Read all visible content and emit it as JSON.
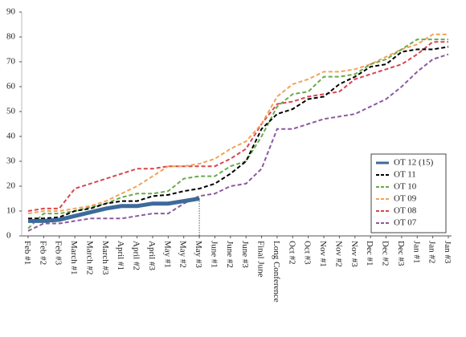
{
  "chart_data": {
    "type": "line",
    "categories": [
      "Feb #1",
      "Feb #2",
      "Feb #3",
      "March #1",
      "March #2",
      "March #3",
      "April #1",
      "April #2",
      "April #3",
      "May #1",
      "May #2",
      "May #3",
      "June #1",
      "June #2",
      "June #3",
      "Final June",
      "Long Conference",
      "Oct #2",
      "Oct #3",
      "Nov #1",
      "Nov #2",
      "Nov #3",
      "Dec #1",
      "Dec #2",
      "Dec #3",
      "Jan #1",
      "Jan #2",
      "Jan #3"
    ],
    "series": [
      {
        "name": "OT 12 (15)",
        "color": "#3d6a9a",
        "style": "solid",
        "values": [
          6,
          6,
          6.5,
          8,
          9.5,
          11,
          12,
          12,
          13,
          13,
          14,
          15,
          null,
          null,
          null,
          null,
          null,
          null,
          null,
          null,
          null,
          null,
          null,
          null,
          null,
          null,
          null,
          null
        ]
      },
      {
        "name": "OT 11",
        "color": "#000000",
        "style": "dashed",
        "values": [
          7,
          7,
          7.5,
          10,
          11,
          13,
          14,
          14,
          16,
          16.5,
          18,
          19,
          21,
          25,
          30,
          43,
          49,
          51,
          55,
          56,
          61,
          64,
          68,
          69,
          74,
          75,
          75,
          76
        ]
      },
      {
        "name": "OT 10",
        "color": "#6aaa4a",
        "style": "dashed",
        "values": [
          3,
          9,
          9,
          10,
          11.5,
          13,
          15.5,
          17,
          17,
          18,
          23,
          24,
          24,
          28,
          30,
          40,
          52,
          57,
          58,
          64,
          64,
          65,
          69,
          71,
          75,
          79,
          79,
          79
        ]
      },
      {
        "name": "OT 09",
        "color": "#f3a35a",
        "style": "dashed",
        "values": [
          9,
          10,
          10,
          11,
          12,
          14,
          17,
          20,
          24,
          28,
          28,
          29,
          31,
          35,
          38,
          45,
          56,
          61,
          63,
          66,
          66,
          67,
          69,
          72,
          75,
          77,
          81,
          81
        ]
      },
      {
        "name": "OT 08",
        "color": "#d9454f",
        "style": "dashed",
        "values": [
          10,
          11,
          11,
          19,
          21,
          23,
          25,
          27,
          27,
          28,
          28,
          28,
          28,
          31,
          35,
          45,
          53,
          54,
          56,
          57,
          58,
          63,
          65,
          67,
          69,
          73,
          78,
          78
        ]
      },
      {
        "name": "OT 07",
        "color": "#8a5a9f",
        "style": "dashed",
        "values": [
          2,
          5,
          5,
          6,
          7,
          7,
          7,
          8,
          9,
          9,
          13,
          16,
          17,
          20,
          21,
          27,
          43,
          43,
          45,
          47,
          48,
          49,
          52,
          55,
          60,
          66,
          71,
          73
        ]
      }
    ],
    "ylim": [
      0,
      90
    ],
    "yticks": [
      0,
      10,
      20,
      30,
      40,
      50,
      60,
      70,
      80,
      90
    ],
    "legend": "lower right"
  }
}
